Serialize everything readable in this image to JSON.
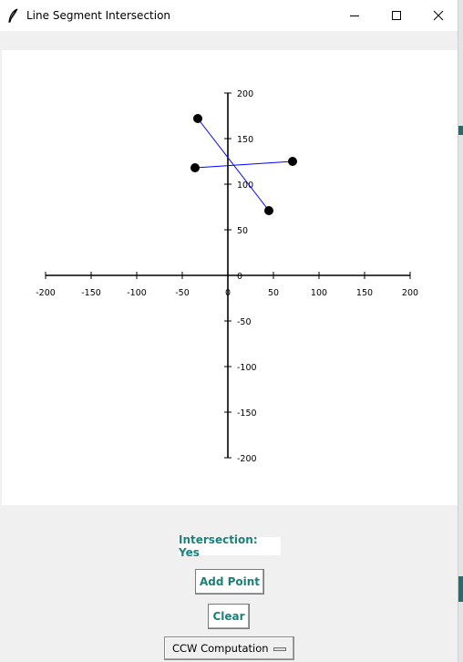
{
  "window": {
    "title": "Line Segment Intersection",
    "icon": "feather-icon",
    "controls": [
      "minimize-icon",
      "maximize-icon",
      "close-icon"
    ]
  },
  "chart_data": {
    "type": "scatter",
    "title": "",
    "xlabel": "",
    "ylabel": "",
    "xlim": [
      -200,
      200
    ],
    "ylim": [
      -200,
      200
    ],
    "x_ticks": [
      -200,
      -150,
      -100,
      -50,
      0,
      50,
      100,
      150,
      200
    ],
    "y_ticks": [
      200,
      150,
      100,
      50,
      0,
      -50,
      -100,
      -150,
      -200
    ],
    "grid": false,
    "points": [
      {
        "x": -33,
        "y": 172
      },
      {
        "x": 45,
        "y": 71
      },
      {
        "x": -36,
        "y": 118
      },
      {
        "x": 71,
        "y": 125
      }
    ],
    "segments": [
      {
        "from": 0,
        "to": 1
      },
      {
        "from": 2,
        "to": 3
      }
    ],
    "point_color": "#000000",
    "segment_color": "#0000ff"
  },
  "result": {
    "text": "Intersection: Yes"
  },
  "buttons": {
    "add_point": "Add Point",
    "clear": "Clear"
  },
  "mode_select": {
    "value": "CCW Computation"
  },
  "colors": {
    "accent": "#1b7f7b"
  }
}
